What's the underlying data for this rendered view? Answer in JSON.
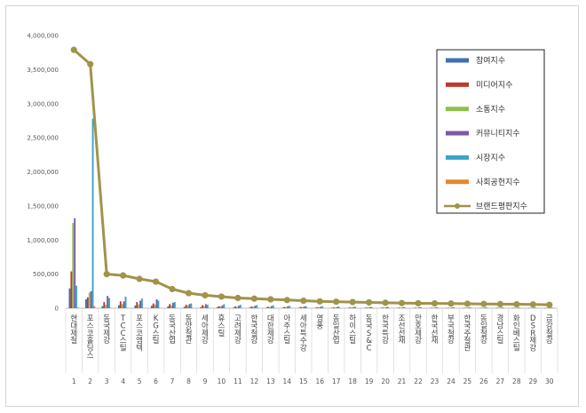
{
  "chart_data": {
    "type": "bar",
    "title": "",
    "xlabel": "",
    "ylabel": "",
    "ylim": [
      0,
      4000000
    ],
    "yticks": [
      "0",
      "500,000",
      "1,000,000",
      "1,500,000",
      "2,000,000",
      "2,500,000",
      "3,000,000",
      "3,500,000",
      "4,000,000"
    ],
    "grid": false,
    "legend_position": "right",
    "categories": [
      "현대제철",
      "포스코홀딩스",
      "동국제강",
      "TCC스틸",
      "포스코엠텍",
      "KG스틸",
      "동국산업",
      "동양철관",
      "세아제강",
      "휴스틸",
      "고려제강",
      "한국철강",
      "대한제강",
      "아주스틸",
      "세아특수강",
      "영풍",
      "동일산업",
      "하이스틸",
      "동국S&C",
      "한국특강",
      "조선선재",
      "만호제강",
      "한국선재",
      "부국철강",
      "한국주철관",
      "동일철강",
      "경남스틸",
      "화인베스틸",
      "DSR제강",
      "금강철강"
    ],
    "ranks": [
      "1",
      "2",
      "3",
      "4",
      "5",
      "6",
      "7",
      "8",
      "9",
      "10",
      "11",
      "12",
      "13",
      "14",
      "15",
      "16",
      "17",
      "18",
      "19",
      "20",
      "21",
      "22",
      "23",
      "24",
      "25",
      "26",
      "27",
      "28",
      "29",
      "30"
    ],
    "series": [
      {
        "name": "참여지수",
        "color": "#3f6fb5",
        "values": [
          290000,
          130000,
          30000,
          45000,
          40000,
          35000,
          25000,
          20000,
          15000,
          12000,
          10000,
          10000,
          9000,
          8000,
          8000,
          7000,
          6000,
          6000,
          5000,
          5000,
          4000,
          4000,
          4000,
          3000,
          3000,
          3000,
          3000,
          2000,
          2000,
          2000
        ]
      },
      {
        "name": "미디어지수",
        "color": "#c0392b",
        "values": [
          540000,
          160000,
          90000,
          100000,
          90000,
          70000,
          60000,
          50000,
          45000,
          30000,
          25000,
          25000,
          20000,
          18000,
          18000,
          15000,
          13000,
          12000,
          10000,
          10000,
          9000,
          8000,
          7000,
          6000,
          6000,
          5000,
          5000,
          4000,
          4000,
          4000
        ]
      },
      {
        "name": "소통지수",
        "color": "#8fbf4d",
        "values": [
          1250000,
          230000,
          50000,
          60000,
          55000,
          50000,
          40000,
          35000,
          30000,
          25000,
          20000,
          20000,
          18000,
          16000,
          15000,
          12000,
          10000,
          10000,
          9000,
          9000,
          8000,
          7000,
          6000,
          5000,
          5000,
          5000,
          4000,
          4000,
          3000,
          3000
        ]
      },
      {
        "name": "커뮤니티지수",
        "color": "#7b5aa6",
        "values": [
          1320000,
          250000,
          180000,
          100000,
          110000,
          130000,
          80000,
          60000,
          60000,
          40000,
          35000,
          35000,
          30000,
          28000,
          25000,
          20000,
          18000,
          15000,
          14000,
          13000,
          12000,
          11000,
          10000,
          9000,
          8000,
          8000,
          7000,
          6000,
          5000,
          5000
        ]
      },
      {
        "name": "시장지수",
        "color": "#3ba3c6",
        "values": [
          330000,
          2780000,
          150000,
          170000,
          140000,
          110000,
          90000,
          70000,
          50000,
          60000,
          50000,
          45000,
          40000,
          35000,
          30000,
          30000,
          25000,
          22000,
          20000,
          20000,
          18000,
          16000,
          15000,
          14000,
          13000,
          12000,
          11000,
          10000,
          10000,
          9000
        ]
      },
      {
        "name": "사회공헌지수",
        "color": "#e8872c",
        "values": [
          10000,
          30000,
          5000,
          5000,
          4000,
          4000,
          3000,
          3000,
          3000,
          2000,
          2000,
          2000,
          2000,
          2000,
          1000,
          1000,
          1000,
          1000,
          1000,
          1000,
          1000,
          1000,
          1000,
          1000,
          1000,
          1000,
          1000,
          1000,
          1000,
          1000
        ]
      },
      {
        "name": "브랜드평판지수",
        "color": "#a09449",
        "type": "line",
        "values": [
          3790000,
          3580000,
          500000,
          480000,
          430000,
          390000,
          280000,
          220000,
          190000,
          170000,
          150000,
          140000,
          130000,
          120000,
          110000,
          100000,
          95000,
          90000,
          85000,
          80000,
          75000,
          72000,
          70000,
          68000,
          65000,
          62000,
          60000,
          58000,
          55000,
          50000
        ]
      }
    ]
  }
}
